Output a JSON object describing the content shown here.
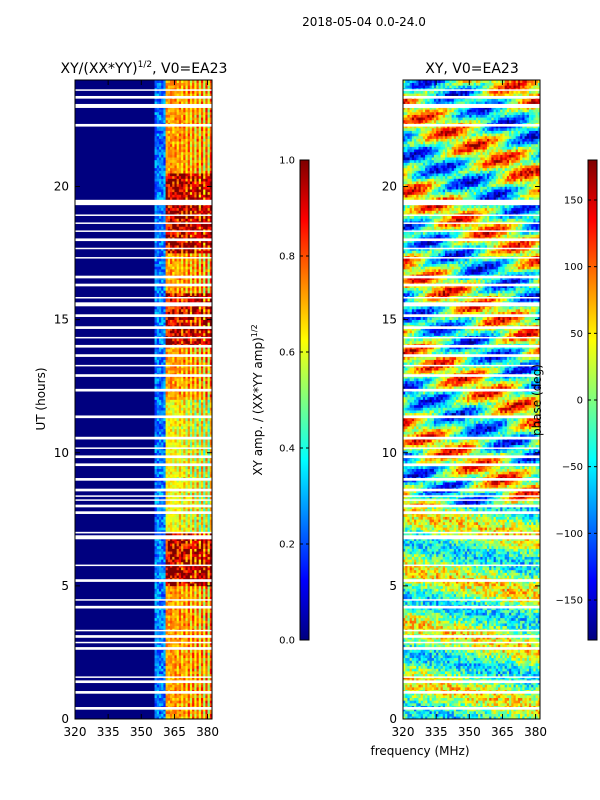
{
  "suptitle": "2018-05-04 0.0-24.0",
  "colors": {
    "jet": [
      "#00007f",
      "#0000ff",
      "#007fff",
      "#00ffff",
      "#7fff7f",
      "#ffff00",
      "#ff7f00",
      "#ff0000",
      "#7f0000"
    ],
    "gap": "#ffffff",
    "frame": "#000000"
  },
  "chart_data": [
    {
      "type": "heatmap",
      "id": "amp",
      "title_prefix": "XY/(XX*YY)",
      "title_sup": "1/2",
      "title_suffix": ", V0=EA23",
      "xlabel": "",
      "ylabel": "UT (hours)",
      "xlim": [
        320,
        382
      ],
      "ylim": [
        0,
        24
      ],
      "xticks": [
        "320",
        "335",
        "350",
        "365",
        "380"
      ],
      "xtick_values": [
        320,
        335,
        350,
        365,
        380
      ],
      "yticks": [
        "0",
        "5",
        "10",
        "15",
        "20"
      ],
      "ytick_values": [
        0,
        5,
        10,
        15,
        20
      ],
      "colorbar": {
        "label": "XY amp. / (XX*YY amp)",
        "label_sup": "1/2",
        "range": [
          0.0,
          1.0
        ],
        "ticks": [
          "0.0",
          "0.2",
          "0.4",
          "0.6",
          "0.8",
          "1.0"
        ],
        "tick_values": [
          0.0,
          0.2,
          0.4,
          0.6,
          0.8,
          1.0
        ]
      }
    },
    {
      "type": "heatmap",
      "id": "phase",
      "title": "XY, V0=EA23",
      "xlabel": "frequency (MHz)",
      "ylabel": "",
      "xlim": [
        320,
        382
      ],
      "ylim": [
        0,
        24
      ],
      "xticks": [
        "320",
        "335",
        "350",
        "365",
        "380"
      ],
      "xtick_values": [
        320,
        335,
        350,
        365,
        380
      ],
      "yticks": [
        "0",
        "5",
        "10",
        "15",
        "20"
      ],
      "ytick_values": [
        0,
        5,
        10,
        15,
        20
      ],
      "colorbar": {
        "label": "phase (deg)",
        "range": [
          -180,
          180
        ],
        "ticks": [
          "−150",
          "−100",
          "−50",
          "0",
          "50",
          "100",
          "150"
        ],
        "tick_values": [
          -150,
          -100,
          -50,
          0,
          50,
          100,
          150
        ]
      }
    }
  ],
  "flagged_ut_bands_hours": [
    [
      0.35,
      0.45
    ],
    [
      0.95,
      1.05
    ],
    [
      1.35,
      1.45
    ],
    [
      1.55,
      1.6
    ],
    [
      2.6,
      2.7
    ],
    [
      2.85,
      2.9
    ],
    [
      3.05,
      3.15
    ],
    [
      3.3,
      3.35
    ],
    [
      4.15,
      4.25
    ],
    [
      4.45,
      4.5
    ],
    [
      5.15,
      5.25
    ],
    [
      5.75,
      5.8
    ],
    [
      6.75,
      6.9
    ],
    [
      6.97,
      7.03
    ],
    [
      7.7,
      7.8
    ],
    [
      7.95,
      8.05
    ],
    [
      8.2,
      8.25
    ],
    [
      8.35,
      8.4
    ],
    [
      8.55,
      8.65
    ],
    [
      8.95,
      9.05
    ],
    [
      9.5,
      9.6
    ],
    [
      9.8,
      9.9
    ],
    [
      10.15,
      10.2
    ],
    [
      10.5,
      10.6
    ],
    [
      11.3,
      11.4
    ],
    [
      12.3,
      12.4
    ],
    [
      12.85,
      12.95
    ],
    [
      13.25,
      13.3
    ],
    [
      13.6,
      13.7
    ],
    [
      13.95,
      14.05
    ],
    [
      14.3,
      14.35
    ],
    [
      14.65,
      14.75
    ],
    [
      15.1,
      15.2
    ],
    [
      15.5,
      15.65
    ],
    [
      15.8,
      15.85
    ],
    [
      16.25,
      16.35
    ],
    [
      16.55,
      16.65
    ],
    [
      17.3,
      17.35
    ],
    [
      17.65,
      17.7
    ],
    [
      17.95,
      18.05
    ],
    [
      18.3,
      18.35
    ],
    [
      18.6,
      18.65
    ],
    [
      18.9,
      18.95
    ],
    [
      19.3,
      19.5
    ],
    [
      22.25,
      22.35
    ],
    [
      22.95,
      23.1
    ],
    [
      23.3,
      23.4
    ],
    [
      23.6,
      23.65
    ]
  ]
}
